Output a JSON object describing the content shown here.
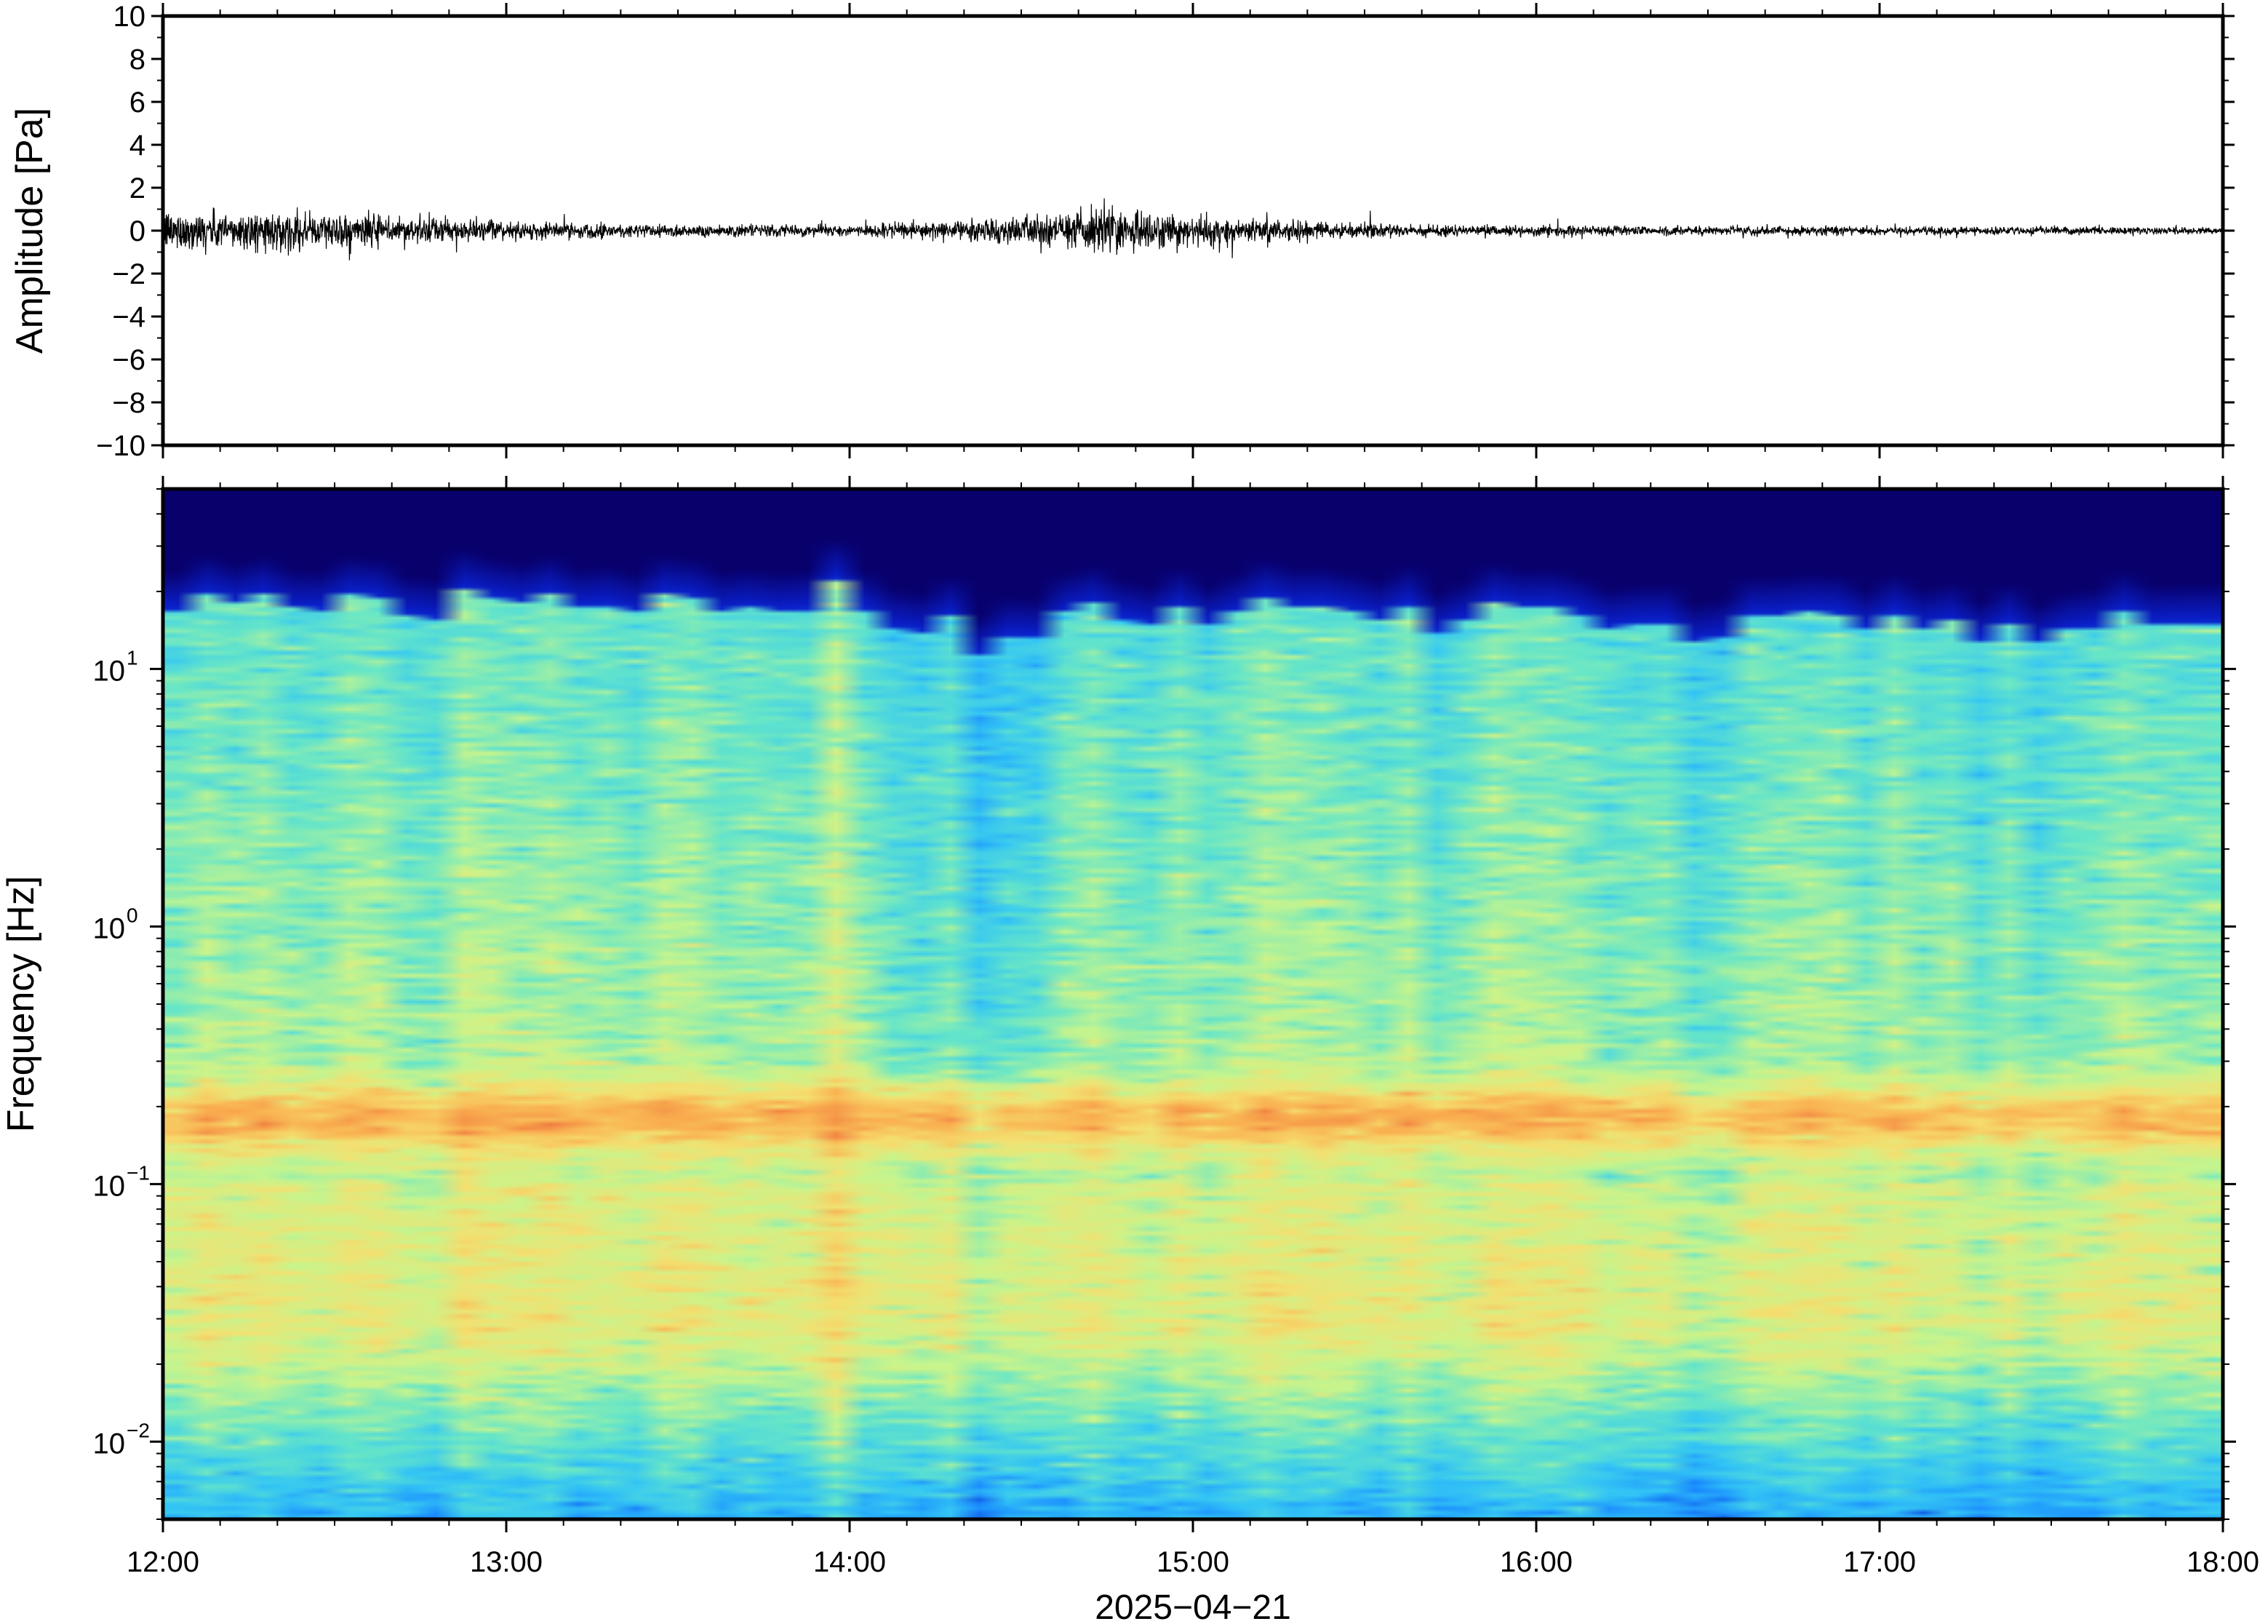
{
  "chart_data": [
    {
      "type": "line",
      "ylabel": "Amplitude [Pa]",
      "ylim": [
        -10,
        10
      ],
      "yticks": [
        "10",
        "8",
        "6",
        "4",
        "2",
        "0",
        "−2",
        "−4",
        "−6",
        "−8",
        "−10"
      ],
      "ytick_values": [
        10,
        8,
        6,
        4,
        2,
        0,
        -2,
        -4,
        -6,
        -8,
        -10
      ],
      "x_range": [
        "2025-04-21T12:00",
        "2025-04-21T18:00"
      ],
      "series": [
        {
          "color": "#000000",
          "noise_envelope": [
            {
              "x": "2025-04-21T12:00",
              "y": 0.45
            },
            {
              "x": "2025-04-21T12:30",
              "y": 0.4
            },
            {
              "x": "2025-04-21T13:00",
              "y": 0.2
            },
            {
              "x": "2025-04-21T13:30",
              "y": 0.15
            },
            {
              "x": "2025-04-21T14:00",
              "y": 0.12
            },
            {
              "x": "2025-04-21T14:30",
              "y": 0.3
            },
            {
              "x": "2025-04-21T14:45",
              "y": 0.55
            },
            {
              "x": "2025-04-21T15:00",
              "y": 0.35
            },
            {
              "x": "2025-04-21T15:30",
              "y": 0.15
            },
            {
              "x": "2025-04-21T16:00",
              "y": 0.12
            },
            {
              "x": "2025-04-21T17:00",
              "y": 0.1
            },
            {
              "x": "2025-04-21T18:00",
              "y": 0.08
            }
          ]
        }
      ]
    },
    {
      "type": "heatmap",
      "ylabel": "Frequency [Hz]",
      "yscale": "log",
      "ylim": [
        0.005,
        50
      ],
      "yticks": [
        {
          "value": 10,
          "base": "10",
          "exp": "1"
        },
        {
          "value": 1,
          "base": "10",
          "exp": "0"
        },
        {
          "value": 0.1,
          "base": "10",
          "exp": "−1"
        },
        {
          "value": 0.01,
          "base": "10",
          "exp": "−2"
        }
      ],
      "xticks": [
        "12:00",
        "13:00",
        "14:00",
        "15:00",
        "16:00",
        "17:00",
        "18:00"
      ],
      "x_range": [
        "2025-04-21T12:00",
        "2025-04-21T18:00"
      ],
      "xlabel": "2025−04−21",
      "colormap": [
        "#08006b",
        "#0a1fc8",
        "#1a8cff",
        "#33c6f5",
        "#66e6c8",
        "#c8f58c",
        "#f5e070",
        "#fab050",
        "#f07a40"
      ],
      "quiet_intervals": [
        {
          "start": "2025-04-21T14:03",
          "end": "2025-04-21T14:22",
          "strength": 0.75
        },
        {
          "start": "2025-04-21T14:22",
          "end": "2025-04-21T14:36",
          "strength": 1.0
        },
        {
          "start": "2025-04-21T15:40",
          "end": "2025-04-21T15:47",
          "strength": 0.5
        }
      ],
      "microbarom_peak_hz": 0.18
    }
  ]
}
